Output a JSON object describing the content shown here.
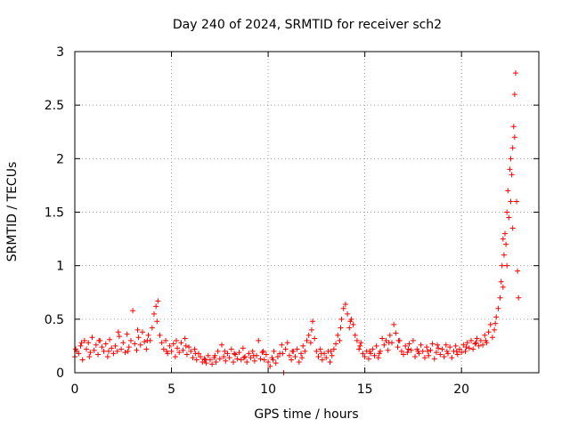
{
  "chart_data": {
    "type": "scatter",
    "title": "Day 240 of 2024, SRMTID for receiver sch2",
    "xlabel": "GPS time / hours",
    "ylabel": "SRMTID / TECUs",
    "xlim": [
      0,
      24
    ],
    "ylim": [
      0,
      3
    ],
    "xticks": [
      0,
      5,
      10,
      15,
      20
    ],
    "xtick_labels": [
      "0",
      "5",
      "10",
      "15",
      "20"
    ],
    "yticks": [
      0,
      0.5,
      1,
      1.5,
      2,
      2.5,
      3
    ],
    "ytick_labels": [
      "0",
      "0.5",
      "1",
      "1.5",
      "2",
      "2.5",
      "3"
    ],
    "grid": true,
    "marker": "plus",
    "color": "#ff0000",
    "series": [
      {
        "name": "sch2",
        "points": [
          [
            0.0,
            0.15
          ],
          [
            0.1,
            0.2
          ],
          [
            0.2,
            0.18
          ],
          [
            0.3,
            0.25
          ],
          [
            0.4,
            0.12
          ],
          [
            0.5,
            0.3
          ],
          [
            0.6,
            0.22
          ],
          [
            0.7,
            0.28
          ],
          [
            0.8,
            0.19
          ],
          [
            0.9,
            0.33
          ],
          [
            1.0,
            0.21
          ],
          [
            1.1,
            0.26
          ],
          [
            1.2,
            0.17
          ],
          [
            1.3,
            0.3
          ],
          [
            1.4,
            0.24
          ],
          [
            1.5,
            0.2
          ],
          [
            1.6,
            0.27
          ],
          [
            1.7,
            0.15
          ],
          [
            1.8,
            0.31
          ],
          [
            1.9,
            0.23
          ],
          [
            2.0,
            0.18
          ],
          [
            2.1,
            0.25
          ],
          [
            2.2,
            0.2
          ],
          [
            2.3,
            0.34
          ],
          [
            2.4,
            0.22
          ],
          [
            2.5,
            0.28
          ],
          [
            2.6,
            0.19
          ],
          [
            2.7,
            0.36
          ],
          [
            2.8,
            0.24
          ],
          [
            2.9,
            0.3
          ],
          [
            3.0,
            0.58
          ],
          [
            3.1,
            0.27
          ],
          [
            3.2,
            0.21
          ],
          [
            3.3,
            0.33
          ],
          [
            3.4,
            0.26
          ],
          [
            3.5,
            0.38
          ],
          [
            3.6,
            0.29
          ],
          [
            3.7,
            0.22
          ],
          [
            3.8,
            0.35
          ],
          [
            3.9,
            0.3
          ],
          [
            4.0,
            0.42
          ],
          [
            4.1,
            0.55
          ],
          [
            4.2,
            0.62
          ],
          [
            4.3,
            0.67
          ],
          [
            4.4,
            0.35
          ],
          [
            4.5,
            0.28
          ],
          [
            4.6,
            0.22
          ],
          [
            4.7,
            0.3
          ],
          [
            4.8,
            0.18
          ],
          [
            4.9,
            0.25
          ],
          [
            5.0,
            0.2
          ],
          [
            5.1,
            0.27
          ],
          [
            5.2,
            0.15
          ],
          [
            5.3,
            0.23
          ],
          [
            5.4,
            0.19
          ],
          [
            5.5,
            0.28
          ],
          [
            5.6,
            0.21
          ],
          [
            5.7,
            0.32
          ],
          [
            5.8,
            0.17
          ],
          [
            5.9,
            0.24
          ],
          [
            6.0,
            0.2
          ],
          [
            6.1,
            0.14
          ],
          [
            6.2,
            0.22
          ],
          [
            6.3,
            0.12
          ],
          [
            6.4,
            0.18
          ],
          [
            6.5,
            0.15
          ],
          [
            6.6,
            0.1
          ],
          [
            6.7,
            0.13
          ],
          [
            6.8,
            0.09
          ],
          [
            6.9,
            0.16
          ],
          [
            7.0,
            0.12
          ],
          [
            7.1,
            0.08
          ],
          [
            7.2,
            0.14
          ],
          [
            7.3,
            0.1
          ],
          [
            7.4,
            0.2
          ],
          [
            7.5,
            0.13
          ],
          [
            7.6,
            0.26
          ],
          [
            7.7,
            0.15
          ],
          [
            7.8,
            0.11
          ],
          [
            7.9,
            0.18
          ],
          [
            8.0,
            0.14
          ],
          [
            8.1,
            0.22
          ],
          [
            8.2,
            0.1
          ],
          [
            8.3,
            0.17
          ],
          [
            8.4,
            0.13
          ],
          [
            8.5,
            0.19
          ],
          [
            8.6,
            0.12
          ],
          [
            8.7,
            0.23
          ],
          [
            8.8,
            0.15
          ],
          [
            8.9,
            0.1
          ],
          [
            9.0,
            0.18
          ],
          [
            9.1,
            0.14
          ],
          [
            9.2,
            0.2
          ],
          [
            9.3,
            0.11
          ],
          [
            9.4,
            0.16
          ],
          [
            9.5,
            0.3
          ],
          [
            9.6,
            0.13
          ],
          [
            9.7,
            0.19
          ],
          [
            9.8,
            0.12
          ],
          [
            9.9,
            0.17
          ],
          [
            10.0,
            0.1
          ],
          [
            10.1,
            0.06
          ],
          [
            10.2,
            0.14
          ],
          [
            10.3,
            0.2
          ],
          [
            10.4,
            0.09
          ],
          [
            10.5,
            0.15
          ],
          [
            10.6,
            0.18
          ],
          [
            10.7,
            0.26
          ],
          [
            10.8,
            0.0
          ],
          [
            10.9,
            0.22
          ],
          [
            11.0,
            0.28
          ],
          [
            11.1,
            0.16
          ],
          [
            11.2,
            0.12
          ],
          [
            11.3,
            0.2
          ],
          [
            11.4,
            0.15
          ],
          [
            11.5,
            0.22
          ],
          [
            11.6,
            0.1
          ],
          [
            11.7,
            0.18
          ],
          [
            11.8,
            0.25
          ],
          [
            11.9,
            0.2
          ],
          [
            12.0,
            0.3
          ],
          [
            12.1,
            0.35
          ],
          [
            12.2,
            0.28
          ],
          [
            12.3,
            0.48
          ],
          [
            12.4,
            0.32
          ],
          [
            12.5,
            0.2
          ],
          [
            12.6,
            0.15
          ],
          [
            12.7,
            0.22
          ],
          [
            12.8,
            0.12
          ],
          [
            12.9,
            0.18
          ],
          [
            13.0,
            0.14
          ],
          [
            13.1,
            0.2
          ],
          [
            13.2,
            0.1
          ],
          [
            13.3,
            0.16
          ],
          [
            13.4,
            0.22
          ],
          [
            13.5,
            0.27
          ],
          [
            13.6,
            0.35
          ],
          [
            13.7,
            0.3
          ],
          [
            13.8,
            0.5
          ],
          [
            13.9,
            0.6
          ],
          [
            14.0,
            0.64
          ],
          [
            14.1,
            0.55
          ],
          [
            14.2,
            0.42
          ],
          [
            14.3,
            0.5
          ],
          [
            14.4,
            0.45
          ],
          [
            14.5,
            0.35
          ],
          [
            14.6,
            0.3
          ],
          [
            14.7,
            0.22
          ],
          [
            14.8,
            0.28
          ],
          [
            14.9,
            0.18
          ],
          [
            15.0,
            0.15
          ],
          [
            15.1,
            0.2
          ],
          [
            15.2,
            0.13
          ],
          [
            15.3,
            0.18
          ],
          [
            15.4,
            0.22
          ],
          [
            15.5,
            0.16
          ],
          [
            15.6,
            0.25
          ],
          [
            15.7,
            0.14
          ],
          [
            15.8,
            0.2
          ],
          [
            15.9,
            0.32
          ],
          [
            16.0,
            0.26
          ],
          [
            16.1,
            0.3
          ],
          [
            16.2,
            0.21
          ],
          [
            16.3,
            0.35
          ],
          [
            16.4,
            0.28
          ],
          [
            16.5,
            0.45
          ],
          [
            16.6,
            0.37
          ],
          [
            16.7,
            0.24
          ],
          [
            16.8,
            0.3
          ],
          [
            16.9,
            0.2
          ],
          [
            17.0,
            0.17
          ],
          [
            17.1,
            0.25
          ],
          [
            17.2,
            0.19
          ],
          [
            17.3,
            0.27
          ],
          [
            17.4,
            0.21
          ],
          [
            17.5,
            0.3
          ],
          [
            17.6,
            0.15
          ],
          [
            17.7,
            0.22
          ],
          [
            17.8,
            0.18
          ],
          [
            17.9,
            0.26
          ],
          [
            18.0,
            0.2
          ],
          [
            18.1,
            0.14
          ],
          [
            18.2,
            0.24
          ],
          [
            18.3,
            0.16
          ],
          [
            18.4,
            0.21
          ],
          [
            18.5,
            0.27
          ],
          [
            18.6,
            0.13
          ],
          [
            18.7,
            0.19
          ],
          [
            18.8,
            0.23
          ],
          [
            18.9,
            0.17
          ],
          [
            19.0,
            0.22
          ],
          [
            19.1,
            0.15
          ],
          [
            19.2,
            0.26
          ],
          [
            19.3,
            0.18
          ],
          [
            19.4,
            0.24
          ],
          [
            19.5,
            0.14
          ],
          [
            19.6,
            0.2
          ],
          [
            19.7,
            0.25
          ],
          [
            19.8,
            0.17
          ],
          [
            19.9,
            0.22
          ],
          [
            20.0,
            0.19
          ],
          [
            20.1,
            0.26
          ],
          [
            20.2,
            0.2
          ],
          [
            20.3,
            0.28
          ],
          [
            20.4,
            0.23
          ],
          [
            20.5,
            0.3
          ],
          [
            20.6,
            0.22
          ],
          [
            20.7,
            0.27
          ],
          [
            20.8,
            0.32
          ],
          [
            20.9,
            0.25
          ],
          [
            21.0,
            0.3
          ],
          [
            21.1,
            0.26
          ],
          [
            21.2,
            0.35
          ],
          [
            21.3,
            0.28
          ],
          [
            21.4,
            0.38
          ],
          [
            21.5,
            0.45
          ],
          [
            21.6,
            0.33
          ],
          [
            21.7,
            0.4
          ],
          [
            21.8,
            0.52
          ],
          [
            21.9,
            0.6
          ],
          [
            22.0,
            0.7
          ],
          [
            22.05,
            0.85
          ],
          [
            22.1,
            1.0
          ],
          [
            22.15,
            0.8
          ],
          [
            22.2,
            1.1
          ],
          [
            22.25,
            1.3
          ],
          [
            22.3,
            1.2
          ],
          [
            22.35,
            1.5
          ],
          [
            22.4,
            1.7
          ],
          [
            22.45,
            1.45
          ],
          [
            22.5,
            1.9
          ],
          [
            22.55,
            2.0
          ],
          [
            22.6,
            1.85
          ],
          [
            22.65,
            2.1
          ],
          [
            22.7,
            2.3
          ],
          [
            22.75,
            2.6
          ],
          [
            22.8,
            2.8
          ],
          [
            22.85,
            1.6
          ],
          [
            22.9,
            0.95
          ],
          [
            22.95,
            0.7
          ],
          [
            0.05,
            0.22
          ],
          [
            0.35,
            0.28
          ],
          [
            0.75,
            0.15
          ],
          [
            1.25,
            0.3
          ],
          [
            1.75,
            0.2
          ],
          [
            2.25,
            0.38
          ],
          [
            2.75,
            0.2
          ],
          [
            3.25,
            0.4
          ],
          [
            3.75,
            0.3
          ],
          [
            4.25,
            0.48
          ],
          [
            4.75,
            0.2
          ],
          [
            5.25,
            0.3
          ],
          [
            5.75,
            0.25
          ],
          [
            6.25,
            0.18
          ],
          [
            6.75,
            0.12
          ],
          [
            7.25,
            0.16
          ],
          [
            7.75,
            0.2
          ],
          [
            8.25,
            0.18
          ],
          [
            8.75,
            0.14
          ],
          [
            9.25,
            0.16
          ],
          [
            9.75,
            0.2
          ],
          [
            10.25,
            0.12
          ],
          [
            10.75,
            0.18
          ],
          [
            11.25,
            0.2
          ],
          [
            11.75,
            0.14
          ],
          [
            12.25,
            0.4
          ],
          [
            12.75,
            0.18
          ],
          [
            13.25,
            0.2
          ],
          [
            13.75,
            0.42
          ],
          [
            14.25,
            0.48
          ],
          [
            14.75,
            0.25
          ],
          [
            15.25,
            0.2
          ],
          [
            15.75,
            0.18
          ],
          [
            16.25,
            0.28
          ],
          [
            16.75,
            0.3
          ],
          [
            17.25,
            0.22
          ],
          [
            17.75,
            0.2
          ],
          [
            18.25,
            0.2
          ],
          [
            18.75,
            0.26
          ],
          [
            19.25,
            0.2
          ],
          [
            19.75,
            0.2
          ],
          [
            20.25,
            0.24
          ],
          [
            20.75,
            0.28
          ],
          [
            21.25,
            0.3
          ],
          [
            21.75,
            0.46
          ],
          [
            22.15,
            1.25
          ],
          [
            22.35,
            1.0
          ],
          [
            22.55,
            1.6
          ],
          [
            22.65,
            1.35
          ],
          [
            22.75,
            2.2
          ]
        ]
      }
    ]
  }
}
